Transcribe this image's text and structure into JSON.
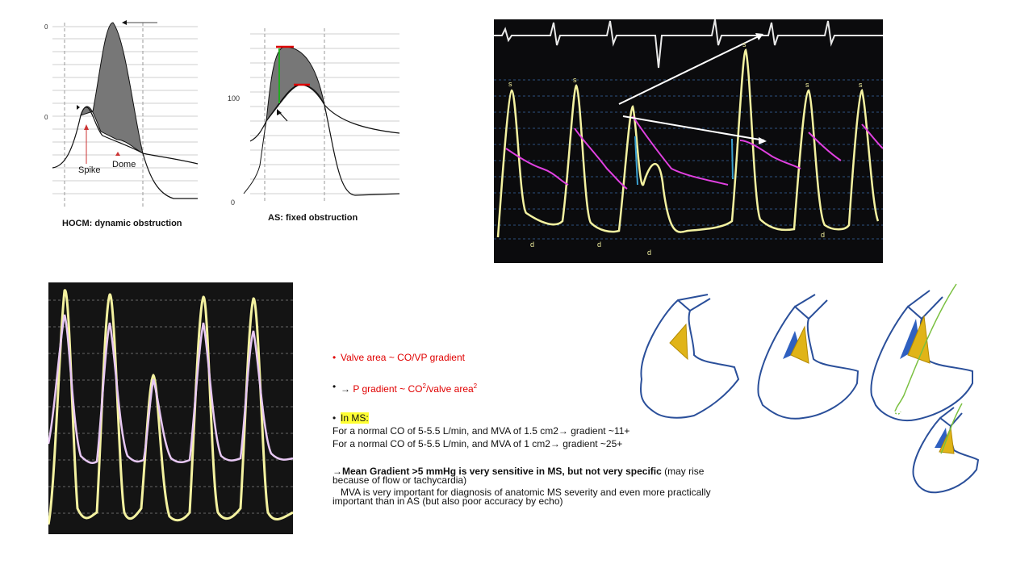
{
  "hocm": {
    "caption": "HOCM: dynamic obstruction",
    "spike_label": "Spike",
    "dome_label": "Dome",
    "tick_top": "0",
    "tick_mid": "0"
  },
  "as": {
    "caption": "AS: fixed obstruction",
    "tick_100": "100",
    "tick_0": "0"
  },
  "monitor_labels": {
    "s": "s",
    "d": "d"
  },
  "notes": {
    "bullet1": "Valve area ~ CO/VP gradient",
    "bullet2_arrow": "→",
    "bullet2_text": "P gradient ~ CO",
    "bullet2_sup1": "2",
    "bullet2_mid": "/valve area",
    "bullet2_sup2": "2",
    "bullet3": "In MS:",
    "line1": "For a normal CO of 5-5.5 L/min, and MVA of 1.5 cm2→ gradient ~11+",
    "line2": "For a normal CO of 5-5.5 L/min, and MVA of 1 cm2→ gradient ~25+",
    "para1_bold": "→Mean Gradient >5 mmHg is very sensitive in MS, but not very specific",
    "para1_rest": " (may rise because of flow or tachycardia)",
    "para2": "MVA is very important for diagnosis of anatomic MS severity and even more practically important than in AS (but also poor accuracy by echo)"
  },
  "colors": {
    "red": "#e00000",
    "highlight": "#ffff33",
    "yellow_trace": "#f4f2a0",
    "magenta_trace": "#e040e0",
    "valve_blue": "#2a4f9a"
  }
}
